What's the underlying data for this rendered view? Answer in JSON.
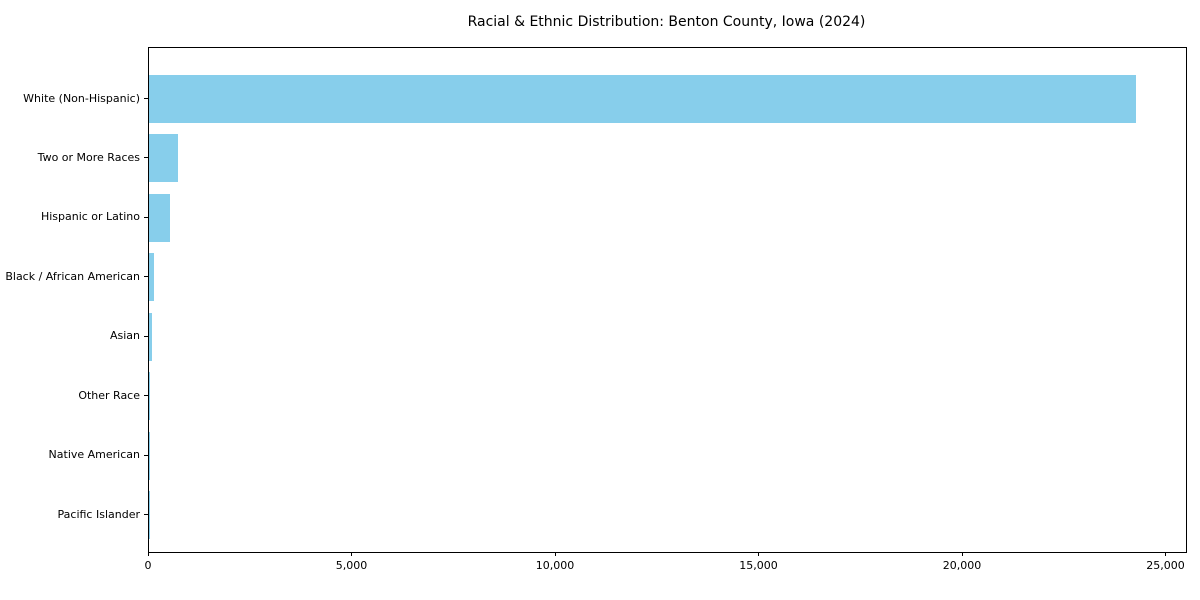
{
  "chart_data": {
    "type": "bar",
    "orientation": "horizontal",
    "title": "Racial & Ethnic Distribution: Benton County, Iowa (2024)",
    "categories": [
      "White (Non-Hispanic)",
      "Two or More Races",
      "Hispanic or Latino",
      "Black / African American",
      "Asian",
      "Other Race",
      "Native American",
      "Pacific Islander"
    ],
    "values": [
      24250,
      710,
      525,
      130,
      75,
      25,
      15,
      5
    ],
    "xlabel": "",
    "ylabel": "",
    "xlim": [
      0,
      25480
    ],
    "x_ticks": [
      {
        "value": 0,
        "label": "0"
      },
      {
        "value": 5000,
        "label": "5,000"
      },
      {
        "value": 10000,
        "label": "10,000"
      },
      {
        "value": 15000,
        "label": "15,000"
      },
      {
        "value": 20000,
        "label": "20,000"
      },
      {
        "value": 25000,
        "label": "25,000"
      }
    ],
    "bar_color": "#87CEEB",
    "spine_color": "#000000",
    "grid": "off",
    "legend": "none"
  }
}
